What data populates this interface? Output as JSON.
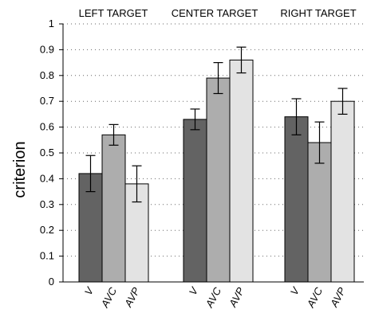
{
  "chart_data": {
    "type": "bar",
    "ylabel": "criterion",
    "ylim": [
      0,
      1
    ],
    "yticks": [
      "0",
      "0.1",
      "0.2",
      "0.3",
      "0.4",
      "0.5",
      "0.6",
      "0.7",
      "0.8",
      "0.9",
      "1"
    ],
    "grid": "horizontal-dotted",
    "groups": [
      "LEFT TARGET",
      "CENTER TARGET",
      "RIGHT TARGET"
    ],
    "categories": [
      "V",
      "AVC",
      "AVP"
    ],
    "series": [
      {
        "category": "V",
        "color": "#636363",
        "values": [
          0.42,
          0.63,
          0.64
        ],
        "errors": [
          0.07,
          0.04,
          0.07
        ]
      },
      {
        "category": "AVC",
        "color": "#adadad",
        "values": [
          0.57,
          0.79,
          0.54
        ],
        "errors": [
          0.04,
          0.06,
          0.08
        ]
      },
      {
        "category": "AVP",
        "color": "#e3e3e3",
        "values": [
          0.38,
          0.86,
          0.7
        ],
        "errors": [
          0.07,
          0.05,
          0.05
        ]
      }
    ]
  }
}
